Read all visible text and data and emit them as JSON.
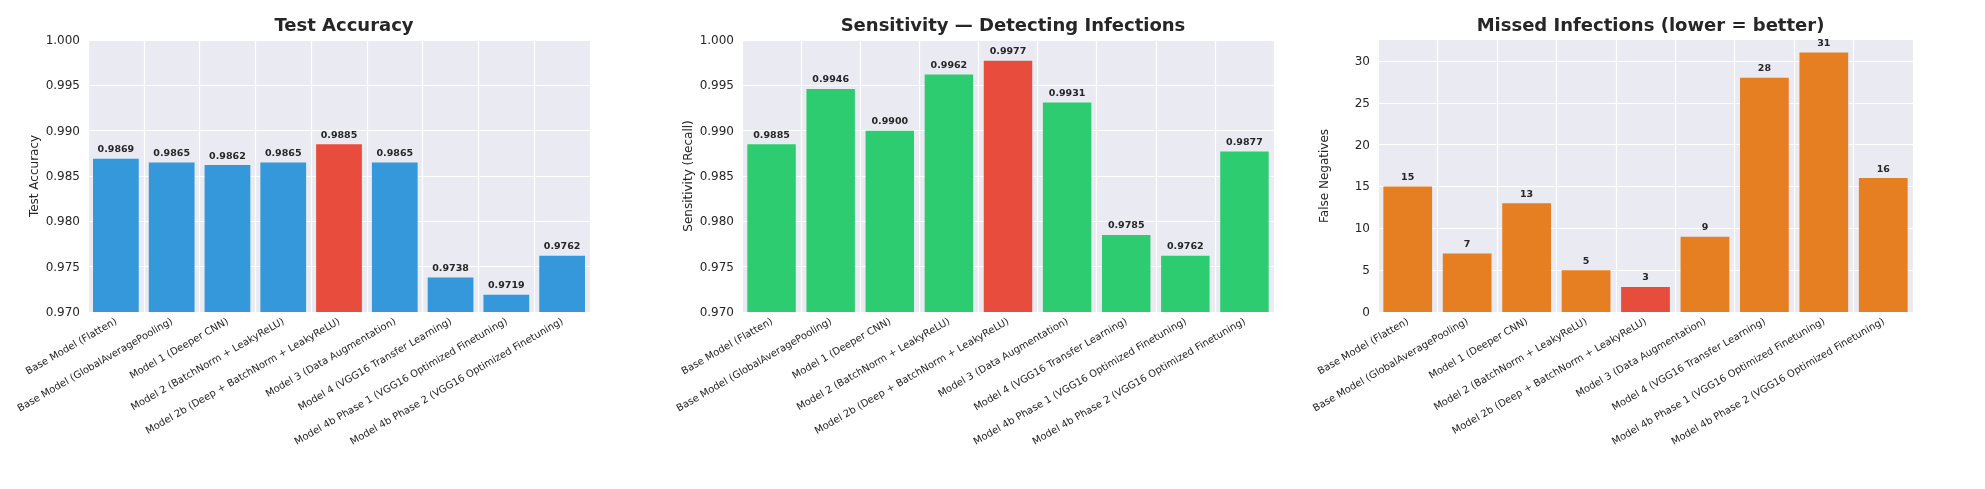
{
  "chart_data": [
    {
      "type": "bar",
      "title": "Test Accuracy",
      "ylabel": "Test Accuracy",
      "categories": [
        "Base Model (Flatten)",
        "Base Model (GlobalAveragePooling)",
        "Model 1 (Deeper CNN)",
        "Model 2 (BatchNorm + LeakyReLU)",
        "Model 2b (Deep + BatchNorm + LeakyReLU)",
        "Model 3 (Data Augmentation)",
        "Model 4 (VGG16 Transfer Learning)",
        "Model 4b Phase 1 (VGG16 Optimized Finetuning)",
        "Model 4b Phase 2 (VGG16 Optimized Finetuning)"
      ],
      "values": [
        0.9869,
        0.9865,
        0.9862,
        0.9865,
        0.9885,
        0.9865,
        0.9738,
        0.9719,
        0.9762
      ],
      "value_labels": [
        "0.9869",
        "0.9865",
        "0.9862",
        "0.9865",
        "0.9885",
        "0.9865",
        "0.9738",
        "0.9719",
        "0.9762"
      ],
      "colors": [
        "#3498db",
        "#3498db",
        "#3498db",
        "#3498db",
        "#e74c3c",
        "#3498db",
        "#3498db",
        "#3498db",
        "#3498db"
      ],
      "ylim": [
        0.97,
        1.0
      ],
      "yticks": [
        {
          "value": 0.97,
          "label": "0.970"
        },
        {
          "value": 0.975,
          "label": "0.975"
        },
        {
          "value": 0.98,
          "label": "0.980"
        },
        {
          "value": 0.985,
          "label": "0.985"
        },
        {
          "value": 0.99,
          "label": "0.990"
        },
        {
          "value": 0.995,
          "label": "0.995"
        },
        {
          "value": 1.0,
          "label": "1.000"
        }
      ],
      "grid": true
    },
    {
      "type": "bar",
      "title": "Sensitivity — Detecting Infections",
      "ylabel": "Sensitivity (Recall)",
      "categories": [
        "Base Model (Flatten)",
        "Base Model (GlobalAveragePooling)",
        "Model 1 (Deeper CNN)",
        "Model 2 (BatchNorm + LeakyReLU)",
        "Model 2b (Deep + BatchNorm + LeakyReLU)",
        "Model 3 (Data Augmentation)",
        "Model 4 (VGG16 Transfer Learning)",
        "Model 4b Phase 1 (VGG16 Optimized Finetuning)",
        "Model 4b Phase 2 (VGG16 Optimized Finetuning)"
      ],
      "values": [
        0.9885,
        0.9946,
        0.99,
        0.9962,
        0.9977,
        0.9931,
        0.9785,
        0.9762,
        0.9877
      ],
      "value_labels": [
        "0.9885",
        "0.9946",
        "0.9900",
        "0.9962",
        "0.9977",
        "0.9931",
        "0.9785",
        "0.9762",
        "0.9877"
      ],
      "colors": [
        "#2ecc71",
        "#2ecc71",
        "#2ecc71",
        "#2ecc71",
        "#e74c3c",
        "#2ecc71",
        "#2ecc71",
        "#2ecc71",
        "#2ecc71"
      ],
      "ylim": [
        0.97,
        1.0
      ],
      "yticks": [
        {
          "value": 0.97,
          "label": "0.970"
        },
        {
          "value": 0.975,
          "label": "0.975"
        },
        {
          "value": 0.98,
          "label": "0.980"
        },
        {
          "value": 0.985,
          "label": "0.985"
        },
        {
          "value": 0.99,
          "label": "0.990"
        },
        {
          "value": 0.995,
          "label": "0.995"
        },
        {
          "value": 1.0,
          "label": "1.000"
        }
      ],
      "grid": true
    },
    {
      "type": "bar",
      "title": "Missed Infections (lower = better)",
      "ylabel": "False Negatives",
      "categories": [
        "Base Model (Flatten)",
        "Base Model (GlobalAveragePooling)",
        "Model 1 (Deeper CNN)",
        "Model 2 (BatchNorm + LeakyReLU)",
        "Model 2b (Deep + BatchNorm + LeakyReLU)",
        "Model 3 (Data Augmentation)",
        "Model 4 (VGG16 Transfer Learning)",
        "Model 4b Phase 1 (VGG16 Optimized Finetuning)",
        "Model 4b Phase 2 (VGG16 Optimized Finetuning)"
      ],
      "values": [
        15,
        7,
        13,
        5,
        3,
        9,
        28,
        31,
        16
      ],
      "data_labels": true,
      "colors": [
        "#e67e22",
        "#e67e22",
        "#e67e22",
        "#e67e22",
        "#e74c3c",
        "#e67e22",
        "#e67e22",
        "#e67e22",
        "#e67e22"
      ],
      "ylim": [
        0,
        32.5
      ],
      "yticks": [
        0,
        5,
        10,
        15,
        20,
        25,
        30
      ],
      "grid": true
    }
  ]
}
